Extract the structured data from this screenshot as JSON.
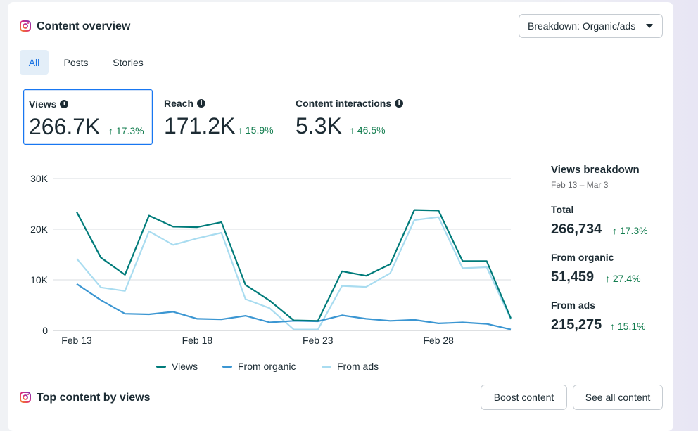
{
  "header": {
    "title": "Content overview",
    "breakdown_button": "Breakdown: Organic/ads"
  },
  "tabs": [
    {
      "label": "All",
      "active": true
    },
    {
      "label": "Posts",
      "active": false
    },
    {
      "label": "Stories",
      "active": false
    }
  ],
  "metrics": [
    {
      "label": "Views",
      "value": "266.7K",
      "change": "17.3%",
      "selected": true
    },
    {
      "label": "Reach",
      "value": "171.2K",
      "change": "15.9%",
      "selected": false
    },
    {
      "label": "Content interactions",
      "value": "5.3K",
      "change": "46.5%",
      "selected": false
    }
  ],
  "breakdown": {
    "title": "Views breakdown",
    "range": "Feb 13 – Mar 3",
    "total_label": "Total",
    "total_value": "266,734",
    "total_change": "17.3%",
    "organic_label": "From organic",
    "organic_value": "51,459",
    "organic_change": "27.4%",
    "ads_label": "From ads",
    "ads_value": "215,275",
    "ads_change": "15.1%"
  },
  "colors": {
    "views": "#007b7a",
    "organic": "#3b96d2",
    "ads": "#a9dcf0",
    "positive": "#137d4f",
    "accent": "#1b74e4"
  },
  "chart_data": {
    "type": "line",
    "x": [
      "Feb 13",
      "Feb 14",
      "Feb 15",
      "Feb 16",
      "Feb 17",
      "Feb 18",
      "Feb 19",
      "Feb 20",
      "Feb 21",
      "Feb 22",
      "Feb 23",
      "Feb 24",
      "Feb 25",
      "Feb 26",
      "Feb 27",
      "Feb 28",
      "Mar 1",
      "Mar 2",
      "Mar 3"
    ],
    "xticks": [
      "Feb 13",
      "Feb 18",
      "Feb 23",
      "Feb 28"
    ],
    "yticks": [
      "0",
      "10K",
      "20K",
      "30K"
    ],
    "ylim": [
      0,
      30000
    ],
    "series": [
      {
        "name": "Views",
        "values": [
          23400,
          14400,
          11000,
          22700,
          20500,
          20400,
          21400,
          9000,
          5900,
          2000,
          1900,
          11700,
          10800,
          13100,
          23800,
          23700,
          13700,
          13700,
          2400
        ]
      },
      {
        "name": "From organic",
        "values": [
          9200,
          6000,
          3300,
          3200,
          3700,
          2300,
          2200,
          2900,
          1600,
          1900,
          1800,
          3000,
          2300,
          1900,
          2100,
          1400,
          1600,
          1300,
          200
        ]
      },
      {
        "name": "From ads",
        "values": [
          14200,
          8500,
          7800,
          19600,
          16900,
          18200,
          19300,
          6200,
          4400,
          200,
          200,
          8800,
          8600,
          11300,
          21800,
          22400,
          12300,
          12500,
          2200
        ]
      }
    ]
  },
  "footer": {
    "title": "Top content by views",
    "boost_button": "Boost content",
    "see_all_button": "See all content"
  }
}
